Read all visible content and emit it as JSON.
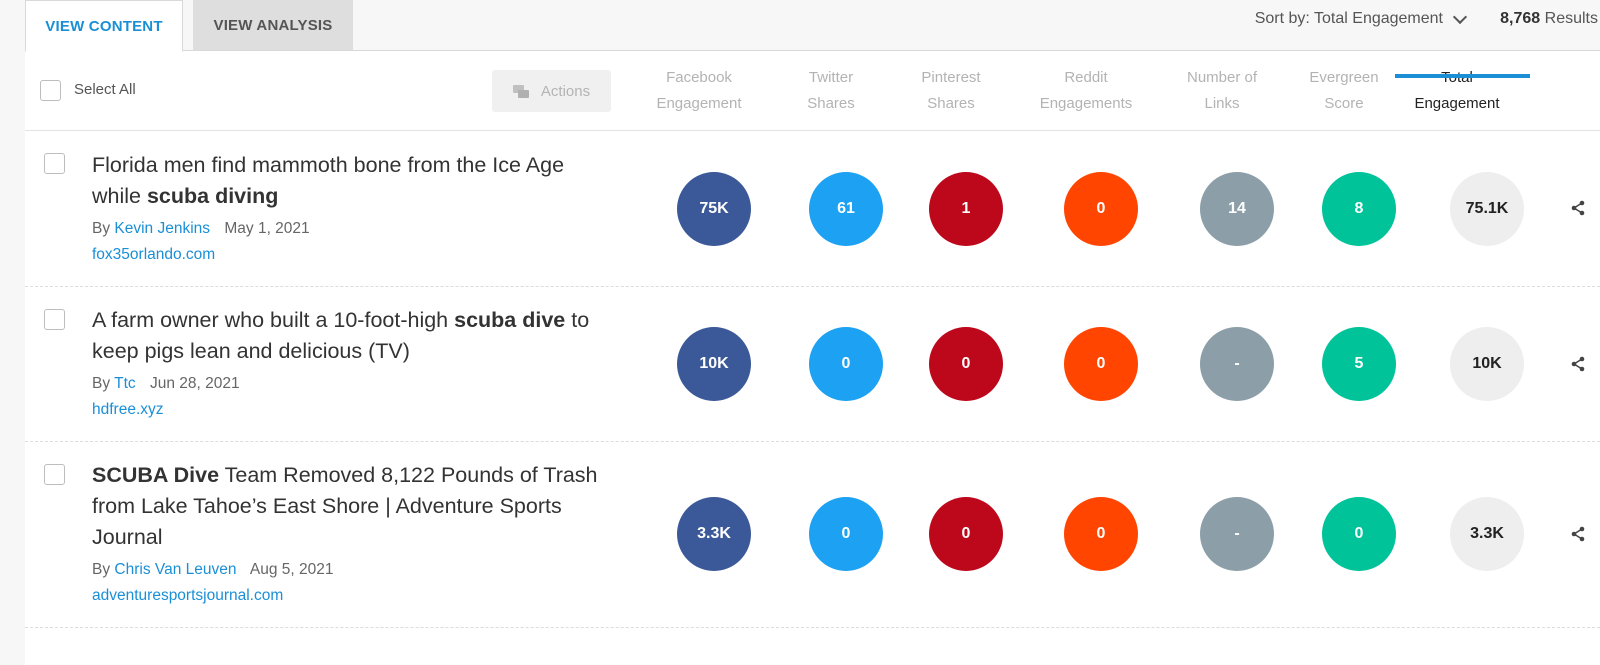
{
  "tabs": {
    "view_content": "VIEW CONTENT",
    "view_analysis": "VIEW ANALYSIS"
  },
  "sort": {
    "label": "Sort by: Total Engagement"
  },
  "results": {
    "count": "8,768",
    "label": "Results"
  },
  "header": {
    "select_all": "Select All",
    "actions": "Actions",
    "columns": [
      {
        "line1": "Facebook",
        "line2": "Engagement"
      },
      {
        "line1": "Twitter",
        "line2": "Shares"
      },
      {
        "line1": "Pinterest",
        "line2": "Shares"
      },
      {
        "line1": "Reddit",
        "line2": "Engagements"
      },
      {
        "line1": "Number of",
        "line2": "Links"
      },
      {
        "line1": "Evergreen",
        "line2": "Score"
      },
      {
        "line1": "Total",
        "line2": "Engagement"
      }
    ]
  },
  "rows": [
    {
      "title_pre": "Florida men find mammoth bone from the Ice Age while ",
      "title_bold": "scuba diving",
      "title_post": "",
      "by": "By",
      "author": "Kevin Jenkins",
      "date": "May 1, 2021",
      "domain": "fox35orlando.com",
      "facebook": "75K",
      "twitter": "61",
      "pinterest": "1",
      "reddit": "0",
      "links": "14",
      "evergreen": "8",
      "total": "75.1K"
    },
    {
      "title_pre": "A farm owner who built a 10-foot-high ",
      "title_bold": "scuba dive",
      "title_post": " to keep pigs lean and delicious (TV)",
      "by": "By",
      "author": "Ttc",
      "date": "Jun 28, 2021",
      "domain": "hdfree.xyz",
      "facebook": "10K",
      "twitter": "0",
      "pinterest": "0",
      "reddit": "0",
      "links": "-",
      "evergreen": "5",
      "total": "10K"
    },
    {
      "title_pre": "",
      "title_bold": "SCUBA Dive",
      "title_post": " Team Removed 8,122 Pounds of Trash from Lake Tahoe’s East Shore | Adventure Sports Journal",
      "by": "By",
      "author": "Chris Van Leuven",
      "date": "Aug 5, 2021",
      "domain": "adventuresportsjournal.com",
      "facebook": "3.3K",
      "twitter": "0",
      "pinterest": "0",
      "reddit": "0",
      "links": "-",
      "evergreen": "0",
      "total": "3.3K"
    }
  ],
  "colors": {
    "accent": "#1a8fd6",
    "facebook": "#3b5998",
    "twitter": "#1da1f2",
    "pinterest": "#bd081c",
    "reddit": "#ff4500",
    "links": "#8c9ea8",
    "evergreen": "#00c39a",
    "total": "#eeeeee"
  }
}
